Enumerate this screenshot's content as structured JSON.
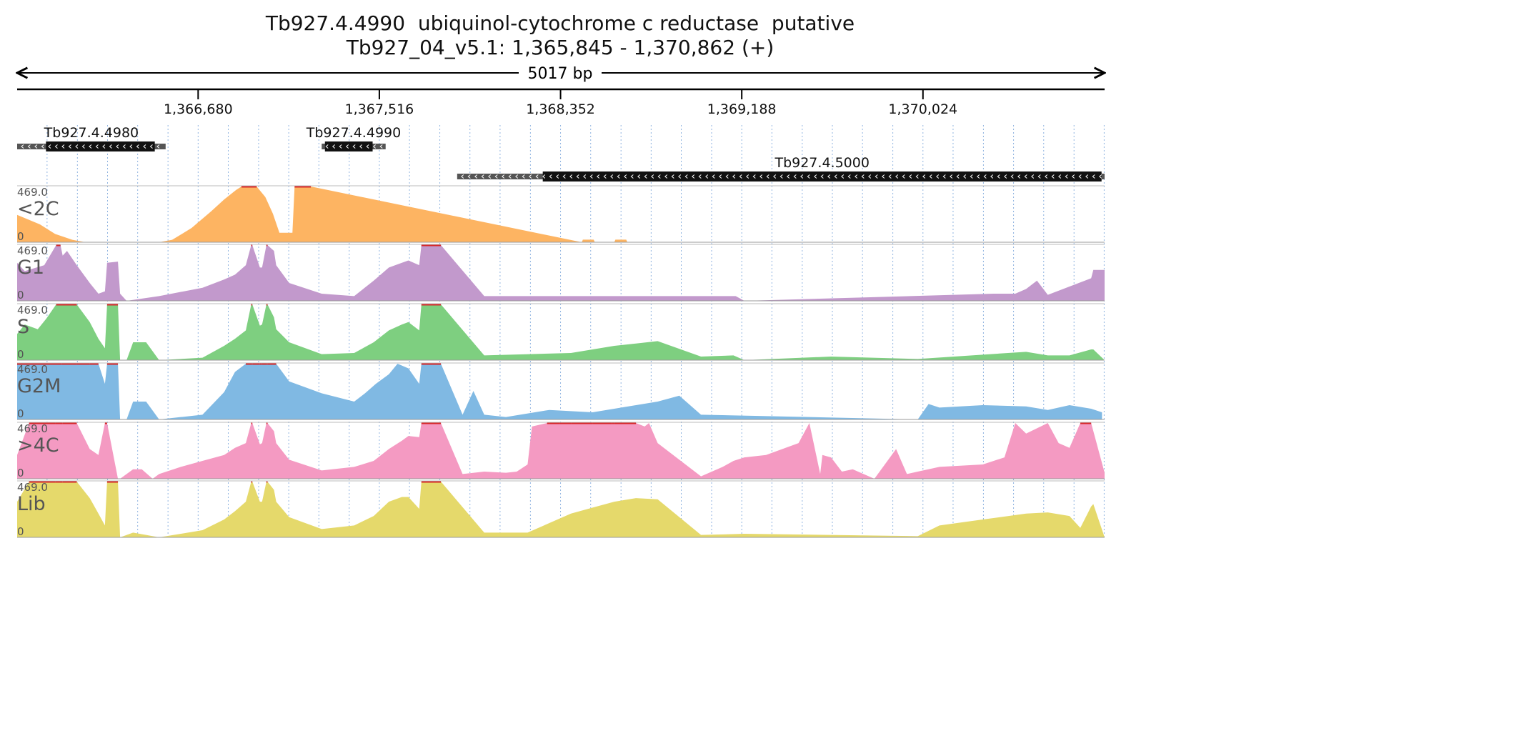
{
  "header": {
    "title": "Tb927.4.4990  ubiquinol-cytochrome c reductase  putative",
    "subtitle": "Tb927_04_v5.1: 1,365,845 - 1,370,862 (+)",
    "span_label": "5017 bp"
  },
  "chart_data": {
    "type": "area",
    "title": "Tb927.4.4990  ubiquinol-cytochrome c reductase  putative",
    "subtitle": "Tb927_04_v5.1: 1,365,845 - 1,370,862 (+)",
    "span_label": "5017 bp",
    "xlim": [
      1365845,
      1370862
    ],
    "x_ticks": [
      1366680,
      1367516,
      1368352,
      1369188,
      1370024
    ],
    "x_tick_labels": [
      "1,366,680",
      "1,367,516",
      "1,368,352",
      "1,369,188",
      "1,370,024"
    ],
    "grid": true,
    "genes": [
      {
        "name": "Tb927.4.4980",
        "strand": "-",
        "utr_start": 1365845,
        "cds_start": 1365978,
        "cds_end": 1366480,
        "utr_end": 1366530
      },
      {
        "name": "Tb927.4.4990",
        "strand": "-",
        "utr_start": 1367250,
        "cds_start": 1367265,
        "cds_end": 1367485,
        "utr_end": 1367545
      },
      {
        "name": "Tb927.4.5000",
        "strand": "-",
        "utr_start": 1367875,
        "cds_start": 1368270,
        "cds_end": 1370848,
        "utr_end": 1370862
      }
    ],
    "ylim": [
      0,
      469.0
    ],
    "y_max_label": "469.0",
    "y_min_label": "0",
    "tracks": [
      {
        "name": "<2C",
        "color": "#fdb462",
        "x": [
          1365845,
          1365950,
          1366020,
          1366100,
          1366160,
          1366500,
          1366560,
          1366650,
          1366740,
          1366800,
          1366855,
          1366880,
          1366950,
          1366990,
          1367025,
          1367055,
          1367115,
          1367125,
          1367200,
          1368450,
          1368455,
          1368505,
          1368510,
          1368600,
          1368605,
          1368655,
          1368660,
          1370862
        ],
        "y": [
          230,
          150,
          70,
          20,
          0,
          0,
          20,
          120,
          260,
          360,
          440,
          469,
          469,
          380,
          240,
          80,
          80,
          469,
          469,
          0,
          22,
          22,
          0,
          0,
          22,
          22,
          0,
          0
        ]
      },
      {
        "name": "G1",
        "color": "#c299cc",
        "x": [
          1365845,
          1365880,
          1365970,
          1366025,
          1366045,
          1366055,
          1366075,
          1366120,
          1366180,
          1366220,
          1366250,
          1366260,
          1366310,
          1366320,
          1366350,
          1366500,
          1366700,
          1366800,
          1366850,
          1366900,
          1366925,
          1366930,
          1366965,
          1366975,
          1366995,
          1367000,
          1367030,
          1367040,
          1367100,
          1367250,
          1367400,
          1367490,
          1367560,
          1367620,
          1367650,
          1367700,
          1367710,
          1367800,
          1368000,
          1368400,
          1368700,
          1369000,
          1369150,
          1369160,
          1369200,
          1370350,
          1370450,
          1370500,
          1370550,
          1370600,
          1370700,
          1370800,
          1370810,
          1370862
        ],
        "y": [
          320,
          250,
          300,
          469,
          469,
          380,
          420,
          300,
          150,
          60,
          80,
          320,
          330,
          60,
          0,
          40,
          110,
          180,
          220,
          300,
          469,
          469,
          280,
          280,
          469,
          469,
          420,
          300,
          150,
          60,
          40,
          170,
          280,
          320,
          340,
          300,
          469,
          469,
          40,
          40,
          40,
          40,
          40,
          40,
          0,
          60,
          60,
          100,
          170,
          50,
          120,
          190,
          260,
          260
        ]
      },
      {
        "name": "S",
        "color": "#7ecf80",
        "x": [
          1365845,
          1365880,
          1365940,
          1365980,
          1366025,
          1366120,
          1366180,
          1366220,
          1366250,
          1366260,
          1366310,
          1366320,
          1366350,
          1366380,
          1366440,
          1366500,
          1366700,
          1366800,
          1366850,
          1366900,
          1366925,
          1366930,
          1366965,
          1366975,
          1366995,
          1367000,
          1367030,
          1367040,
          1367100,
          1367250,
          1367400,
          1367490,
          1367560,
          1367620,
          1367650,
          1367700,
          1367710,
          1367800,
          1368000,
          1368400,
          1368600,
          1368800,
          1369000,
          1369150,
          1369200,
          1369600,
          1370000,
          1370500,
          1370600,
          1370700,
          1370800,
          1370810,
          1370862
        ],
        "y": [
          220,
          300,
          260,
          350,
          469,
          469,
          320,
          180,
          100,
          469,
          469,
          0,
          0,
          150,
          150,
          0,
          20,
          120,
          180,
          250,
          469,
          469,
          290,
          300,
          469,
          469,
          360,
          260,
          150,
          50,
          60,
          150,
          250,
          300,
          320,
          250,
          469,
          469,
          40,
          60,
          120,
          160,
          30,
          40,
          0,
          30,
          10,
          70,
          40,
          40,
          90,
          90,
          0
        ]
      },
      {
        "name": "G2M",
        "color": "#80b9e3",
        "x": [
          1365845,
          1366000,
          1366050,
          1366120,
          1366180,
          1366220,
          1366250,
          1366260,
          1366310,
          1366320,
          1366350,
          1366380,
          1366440,
          1366500,
          1366600,
          1366700,
          1366800,
          1366850,
          1366900,
          1366925,
          1366930,
          1366965,
          1366975,
          1366995,
          1367000,
          1367030,
          1367040,
          1367100,
          1367250,
          1367400,
          1367450,
          1367500,
          1367560,
          1367600,
          1367650,
          1367700,
          1367710,
          1367800,
          1367900,
          1367950,
          1368000,
          1368100,
          1368300,
          1368500,
          1368700,
          1368800,
          1368900,
          1369000,
          1370000,
          1370050,
          1370100,
          1370300,
          1370500,
          1370600,
          1370700,
          1370800,
          1370850
        ],
        "y": [
          469,
          469,
          469,
          469,
          469,
          469,
          300,
          469,
          469,
          0,
          0,
          150,
          150,
          0,
          20,
          40,
          230,
          400,
          469,
          469,
          469,
          469,
          469,
          469,
          469,
          469,
          469,
          320,
          220,
          150,
          220,
          300,
          380,
          469,
          430,
          300,
          469,
          469,
          40,
          240,
          40,
          20,
          80,
          60,
          120,
          150,
          200,
          40,
          0,
          130,
          100,
          120,
          110,
          80,
          120,
          90,
          60
        ]
      },
      {
        "name": ">4C",
        "color": "#f49ac2",
        "x": [
          1365845,
          1365900,
          1365980,
          1366020,
          1366055,
          1366120,
          1366180,
          1366220,
          1366250,
          1366260,
          1366310,
          1366320,
          1366380,
          1366420,
          1366470,
          1366500,
          1366600,
          1366700,
          1366800,
          1366850,
          1366900,
          1366925,
          1366930,
          1366965,
          1366975,
          1366995,
          1367000,
          1367030,
          1367040,
          1367100,
          1367250,
          1367400,
          1367490,
          1367560,
          1367620,
          1367650,
          1367700,
          1367710,
          1367800,
          1367900,
          1368000,
          1368100,
          1368150,
          1368200,
          1368220,
          1368290,
          1368300,
          1368350,
          1368400,
          1368500,
          1368590,
          1368600,
          1368700,
          1368740,
          1368760,
          1368800,
          1369000,
          1369100,
          1369150,
          1369200,
          1369300,
          1369450,
          1369500,
          1369550,
          1369560,
          1369600,
          1369650,
          1369700,
          1369800,
          1369900,
          1369950,
          1370000,
          1370100,
          1370300,
          1370400,
          1370450,
          1370500,
          1370600,
          1370650,
          1370700,
          1370750,
          1370800,
          1370862
        ],
        "y": [
          200,
          469,
          469,
          469,
          469,
          469,
          250,
          200,
          469,
          469,
          0,
          0,
          80,
          80,
          0,
          40,
          100,
          150,
          200,
          260,
          300,
          469,
          469,
          290,
          300,
          469,
          469,
          400,
          300,
          160,
          70,
          100,
          150,
          250,
          320,
          360,
          350,
          469,
          469,
          40,
          60,
          50,
          60,
          120,
          440,
          469,
          469,
          469,
          469,
          469,
          469,
          469,
          469,
          440,
          469,
          300,
          20,
          100,
          150,
          180,
          200,
          300,
          469,
          40,
          200,
          180,
          60,
          80,
          0,
          250,
          40,
          60,
          100,
          120,
          180,
          469,
          380,
          469,
          300,
          260,
          469,
          469,
          50
        ]
      },
      {
        "name": "Lib",
        "color": "#e5d96b",
        "x": [
          1365845,
          1365900,
          1365980,
          1366020,
          1366055,
          1366120,
          1366180,
          1366220,
          1366250,
          1366260,
          1366310,
          1366320,
          1366380,
          1366440,
          1366500,
          1366600,
          1366700,
          1366800,
          1366850,
          1366900,
          1366925,
          1366930,
          1366965,
          1366975,
          1366995,
          1367000,
          1367030,
          1367040,
          1367100,
          1367250,
          1367400,
          1367490,
          1367560,
          1367620,
          1367650,
          1367700,
          1367710,
          1367800,
          1368000,
          1368200,
          1368400,
          1368500,
          1368600,
          1368700,
          1368800,
          1369000,
          1369200,
          1370000,
          1370100,
          1370300,
          1370500,
          1370600,
          1370700,
          1370750,
          1370800,
          1370810,
          1370862
        ],
        "y": [
          300,
          469,
          469,
          469,
          469,
          469,
          330,
          200,
          100,
          469,
          469,
          0,
          40,
          20,
          0,
          30,
          60,
          150,
          220,
          300,
          469,
          469,
          300,
          300,
          469,
          469,
          400,
          300,
          170,
          70,
          100,
          180,
          300,
          340,
          340,
          240,
          469,
          469,
          40,
          40,
          200,
          250,
          300,
          330,
          320,
          20,
          30,
          10,
          100,
          150,
          200,
          210,
          180,
          80,
          260,
          280,
          0
        ]
      }
    ]
  }
}
